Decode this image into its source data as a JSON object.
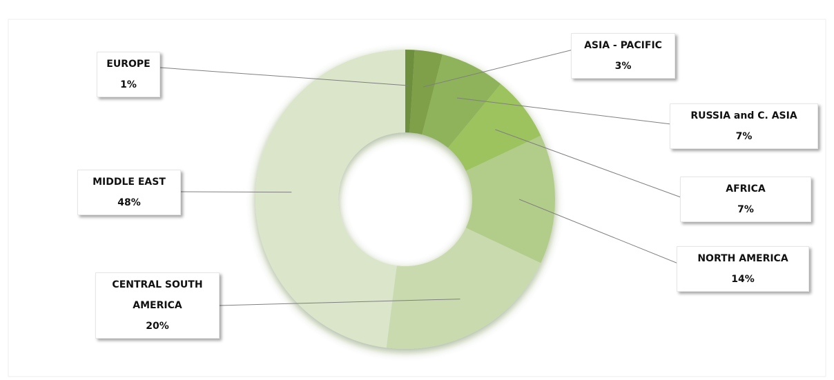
{
  "chart_data": {
    "type": "donut",
    "categories": [
      "EUROPE",
      "ASIA - PACIFIC",
      "RUSSIA and C. ASIA",
      "AFRICA",
      "NORTH AMERICA",
      "CENTRAL SOUTH AMERICA",
      "MIDDLE EAST"
    ],
    "values": [
      1,
      3,
      7,
      7,
      14,
      20,
      48
    ],
    "value_labels": [
      "1%",
      "3%",
      "7%",
      "7%",
      "14%",
      "20%",
      "48%"
    ],
    "colors": [
      "#6e8f3e",
      "#7fa04a",
      "#8fb35a",
      "#9dc35f",
      "#b2cd8a",
      "#c8daae",
      "#dae5c9"
    ]
  }
}
